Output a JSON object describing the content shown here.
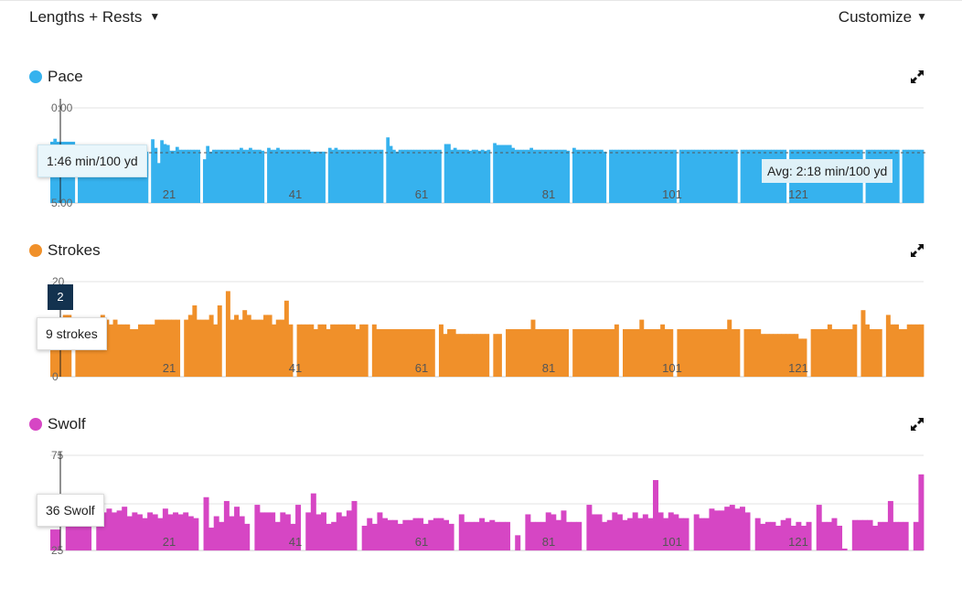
{
  "header": {
    "view_label": "Lengths + Rests",
    "customize_label": "Customize"
  },
  "panels": {
    "pace": {
      "title": "Pace",
      "color": "#36b2ee",
      "ytick_top": "0:00",
      "ytick_bottom": "5:00",
      "tooltip": "1:46 min/100 yd",
      "avg_label": "Avg: 2:18 min/100 yd"
    },
    "strokes": {
      "title": "Strokes",
      "color": "#f0902a",
      "ytick_top": "20",
      "ytick_bottom": "0",
      "tooltip": "9 strokes",
      "marker": "2"
    },
    "swolf": {
      "title": "Swolf",
      "color": "#d646c4",
      "ytick_top": "75",
      "ytick_bottom": "25",
      "tooltip": "36 Swolf"
    }
  },
  "chart_data": [
    {
      "type": "bar",
      "name": "Pace",
      "unit": "min/100 yd",
      "ylim": [
        "5:00",
        "0:00"
      ],
      "y_inverted": true,
      "x_ticks": [
        21,
        41,
        61,
        81,
        101,
        121
      ],
      "avg": "2:18",
      "values": [
        1.78,
        1.62,
        1.78,
        1.78,
        1.78,
        1.78,
        1.78,
        1.78,
        null,
        2.2,
        2.1,
        2.2,
        2.2,
        2.15,
        2.15,
        2.15,
        2.15,
        2.15,
        2.2,
        2.2,
        2.25,
        2.25,
        2.2,
        2.25,
        2.3,
        2.3,
        2.3,
        2.3,
        2.3,
        2.25,
        2.3,
        2.3,
        null,
        1.65,
        2.1,
        2.9,
        1.7,
        1.9,
        1.95,
        2.25,
        2.25,
        2.05,
        2.2,
        2.2,
        2.2,
        2.2,
        2.2,
        2.2,
        2.2,
        null,
        2.7,
        2.0,
        2.3,
        2.2,
        2.2,
        2.2,
        2.2,
        2.2,
        2.2,
        2.2,
        2.2,
        2.2,
        2.1,
        2.2,
        2.2,
        2.1,
        2.2,
        2.2,
        2.2,
        2.25,
        null,
        2.1,
        2.2,
        2.2,
        2.1,
        2.2,
        2.2,
        2.2,
        2.2,
        2.2,
        2.2,
        2.2,
        2.2,
        2.2,
        2.2,
        2.3,
        2.3,
        2.3,
        2.3,
        2.3,
        null,
        2.1,
        2.2,
        2.1,
        2.2,
        2.2,
        2.2,
        2.2,
        2.2,
        2.2,
        2.2,
        2.2,
        2.2,
        2.2,
        2.2,
        2.2,
        2.2,
        2.2,
        2.2,
        null,
        1.55,
        2.0,
        2.2,
        2.3,
        2.2,
        2.2,
        2.2,
        2.2,
        2.2,
        2.2,
        2.2,
        2.2,
        2.2,
        2.2,
        2.2,
        2.2,
        2.2,
        2.2,
        null,
        1.9,
        1.9,
        2.2,
        2.1,
        2.2,
        2.2,
        2.2,
        2.2,
        2.25,
        2.2,
        2.2,
        2.25,
        2.2,
        2.25,
        2.2,
        null,
        1.85,
        1.95,
        1.95,
        1.95,
        1.95,
        1.95,
        2.1,
        2.2,
        2.2,
        2.2,
        2.2,
        2.2,
        2.1,
        2.2,
        2.2,
        2.2,
        2.2,
        2.2,
        2.2,
        2.2,
        2.2,
        2.2,
        2.2,
        2.2,
        2.25,
        null,
        2.1,
        2.2,
        2.2,
        2.2,
        2.2,
        2.2,
        2.2,
        2.2,
        2.2,
        2.2,
        2.3,
        null,
        2.2,
        2.2,
        2.2,
        2.2,
        2.2,
        2.2,
        2.2,
        2.2,
        2.2,
        2.2,
        2.2,
        2.2,
        2.2,
        2.2,
        2.2,
        2.2,
        2.2,
        2.2,
        2.2,
        2.2,
        2.2,
        2.2,
        null,
        2.2,
        2.2,
        2.2,
        2.2,
        2.2,
        2.2,
        2.2,
        2.2,
        2.2,
        2.2,
        2.2,
        2.2,
        2.2,
        2.2,
        2.2,
        2.2,
        2.2,
        2.2,
        2.2,
        null,
        2.2,
        2.2,
        2.2,
        2.2,
        2.2,
        2.2,
        2.2,
        2.2,
        2.2,
        2.2,
        2.2,
        2.2,
        2.2,
        2.2,
        2.2,
        null,
        2.2,
        2.2,
        2.2,
        2.2,
        2.2,
        2.2,
        2.2,
        2.2,
        2.2,
        2.2,
        2.2,
        2.2,
        2.2,
        2.2,
        2.2,
        2.2,
        2.2,
        2.2,
        2.2,
        2.2,
        2.2,
        2.2,
        2.2,
        2.2,
        null,
        2.2,
        2.2,
        2.2,
        2.2,
        2.2,
        2.2,
        2.2,
        2.2,
        2.2,
        2.2,
        2.2,
        null,
        2.2,
        2.2,
        2.2,
        2.2,
        2.2,
        2.2,
        2.2
      ]
    },
    {
      "type": "bar",
      "name": "Strokes",
      "unit": "strokes",
      "ylim": [
        0,
        20
      ],
      "x_ticks": [
        21,
        41,
        61,
        81,
        101,
        121
      ],
      "values": [
        9,
        12,
        12,
        13,
        13,
        null,
        11,
        12,
        11,
        12,
        12,
        12,
        13,
        12,
        11,
        12,
        11,
        11,
        11,
        10,
        10,
        11,
        11,
        11,
        11,
        12,
        12,
        12,
        12,
        12,
        12,
        null,
        12,
        13,
        15,
        12,
        12,
        12,
        13,
        11,
        15,
        null,
        18,
        12,
        13,
        12,
        14,
        13,
        12,
        12,
        12,
        13,
        13,
        11,
        12,
        12,
        16,
        11,
        null,
        11,
        11,
        11,
        11,
        10,
        11,
        11,
        10,
        11,
        11,
        11,
        11,
        11,
        11,
        10,
        11,
        11,
        null,
        11,
        10,
        10,
        10,
        10,
        10,
        10,
        10,
        10,
        10,
        10,
        10,
        10,
        10,
        10,
        null,
        11,
        9,
        10,
        10,
        9,
        9,
        9,
        9,
        9,
        9,
        9,
        9,
        null,
        9,
        9,
        null,
        10,
        10,
        10,
        10,
        10,
        10,
        12,
        10,
        10,
        10,
        10,
        10,
        10,
        10,
        10,
        null,
        10,
        10,
        10,
        10,
        10,
        10,
        10,
        10,
        10,
        10,
        11,
        null,
        10,
        10,
        10,
        10,
        12,
        10,
        10,
        10,
        10,
        11,
        10,
        10,
        null,
        10,
        10,
        10,
        10,
        10,
        10,
        10,
        10,
        10,
        10,
        10,
        10,
        12,
        10,
        10,
        null,
        10,
        10,
        10,
        10,
        9,
        9,
        9,
        9,
        9,
        9,
        9,
        9,
        9,
        8,
        8,
        null,
        10,
        10,
        10,
        10,
        11,
        10,
        10,
        10,
        10,
        10,
        11,
        null,
        14,
        11,
        10,
        10,
        10,
        null,
        13,
        11,
        11,
        10,
        10,
        11,
        11,
        11,
        11
      ]
    },
    {
      "type": "bar",
      "name": "Swolf",
      "unit": "Swolf",
      "ylim": [
        25,
        75
      ],
      "x_ticks": [
        21,
        41,
        61,
        81,
        101,
        121
      ],
      "values": [
        36,
        36,
        null,
        45,
        47,
        46,
        45,
        47,
        null,
        45,
        45,
        47,
        45,
        46,
        48,
        43,
        45,
        44,
        42,
        45,
        44,
        42,
        47,
        44,
        45,
        44,
        45,
        43,
        42,
        null,
        53,
        37,
        43,
        40,
        51,
        43,
        48,
        43,
        39,
        null,
        49,
        45,
        45,
        45,
        40,
        45,
        44,
        39,
        49,
        null,
        45,
        55,
        44,
        45,
        39,
        40,
        45,
        43,
        46,
        51,
        null,
        38,
        42,
        39,
        45,
        42,
        41,
        41,
        39,
        41,
        41,
        42,
        42,
        39,
        41,
        42,
        42,
        41,
        39,
        null,
        44,
        40,
        40,
        40,
        42,
        40,
        41,
        40,
        40,
        40,
        null,
        33,
        null,
        44,
        40,
        40,
        40,
        45,
        44,
        41,
        46,
        40,
        40,
        40,
        null,
        49,
        44,
        44,
        40,
        41,
        45,
        44,
        41,
        42,
        45,
        42,
        44,
        42,
        62,
        45,
        42,
        45,
        44,
        42,
        42,
        null,
        44,
        42,
        42,
        47,
        46,
        46,
        48,
        49,
        47,
        48,
        45,
        null,
        42,
        39,
        40,
        40,
        38,
        41,
        42,
        38,
        40,
        38,
        40,
        null,
        49,
        40,
        40,
        42,
        38,
        26,
        null,
        41,
        41,
        41,
        41,
        38,
        40,
        40,
        51,
        40,
        40,
        40,
        null,
        40,
        65
      ]
    }
  ]
}
